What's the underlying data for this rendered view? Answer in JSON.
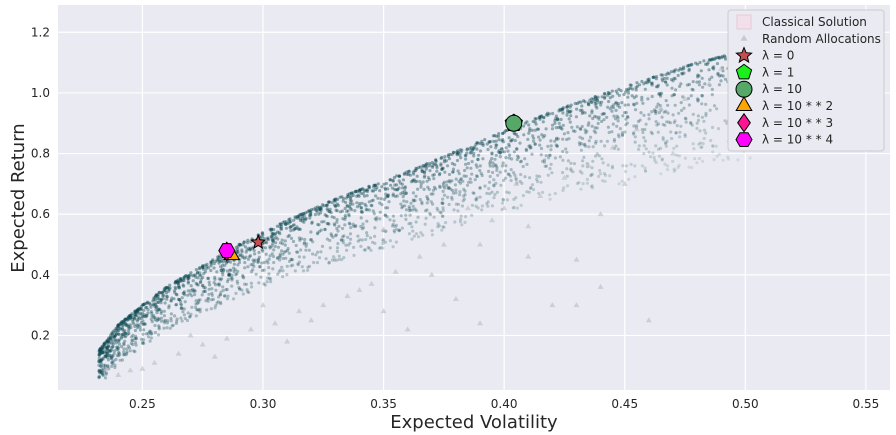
{
  "chart_data": {
    "type": "scatter",
    "xlabel": "Expected Volatility",
    "ylabel": "Expected Return",
    "xlim": [
      0.215,
      0.56
    ],
    "ylim": [
      0.02,
      1.29
    ],
    "xticks": [
      "0.25",
      "0.30",
      "0.35",
      "0.40",
      "0.45",
      "0.50",
      "0.55"
    ],
    "yticks": [
      "0.2",
      "0.4",
      "0.6",
      "0.8",
      "1.0",
      "1.2"
    ],
    "grid": true,
    "legend_position": "top-right",
    "random_cloud": {
      "name": "Random Allocations",
      "color": "#0e4a52",
      "frontier": [
        [
          0.232,
          0.15
        ],
        [
          0.24,
          0.235
        ],
        [
          0.25,
          0.3
        ],
        [
          0.26,
          0.36
        ],
        [
          0.275,
          0.43
        ],
        [
          0.29,
          0.5
        ],
        [
          0.31,
          0.58
        ],
        [
          0.33,
          0.65
        ],
        [
          0.36,
          0.74
        ],
        [
          0.39,
          0.84
        ],
        [
          0.42,
          0.94
        ],
        [
          0.45,
          1.02
        ],
        [
          0.48,
          1.1
        ],
        [
          0.505,
          1.15
        ]
      ],
      "sparse_points": [
        [
          0.27,
          0.2
        ],
        [
          0.3,
          0.3
        ],
        [
          0.32,
          0.25
        ],
        [
          0.34,
          0.35
        ],
        [
          0.37,
          0.4
        ],
        [
          0.39,
          0.5
        ],
        [
          0.41,
          0.56
        ],
        [
          0.42,
          0.3
        ],
        [
          0.44,
          0.6
        ],
        [
          0.46,
          0.25
        ],
        [
          0.43,
          0.45
        ],
        [
          0.45,
          0.7
        ],
        [
          0.47,
          0.8
        ],
        [
          0.35,
          0.55
        ],
        [
          0.31,
          0.18
        ],
        [
          0.28,
          0.13
        ],
        [
          0.24,
          0.07
        ],
        [
          0.25,
          0.09
        ],
        [
          0.36,
          0.22
        ],
        [
          0.4,
          0.62
        ],
        [
          0.38,
          0.32
        ],
        [
          0.33,
          0.45
        ],
        [
          0.49,
          1.08
        ],
        [
          0.5,
          1.12
        ],
        [
          0.495,
          1.06
        ],
        [
          0.485,
          1.03
        ],
        [
          0.505,
          1.16
        ],
        [
          0.475,
          0.98
        ],
        [
          0.465,
          0.95
        ],
        [
          0.455,
          0.88
        ],
        [
          0.445,
          0.82
        ],
        [
          0.435,
          0.76
        ],
        [
          0.425,
          0.72
        ],
        [
          0.415,
          0.66
        ],
        [
          0.405,
          0.7
        ],
        [
          0.395,
          0.58
        ],
        [
          0.385,
          0.62
        ],
        [
          0.375,
          0.5
        ],
        [
          0.365,
          0.46
        ],
        [
          0.355,
          0.41
        ],
        [
          0.345,
          0.37
        ],
        [
          0.335,
          0.33
        ],
        [
          0.325,
          0.3
        ],
        [
          0.315,
          0.28
        ],
        [
          0.305,
          0.24
        ],
        [
          0.295,
          0.22
        ],
        [
          0.285,
          0.19
        ],
        [
          0.275,
          0.17
        ],
        [
          0.265,
          0.14
        ],
        [
          0.255,
          0.11
        ],
        [
          0.245,
          0.085
        ],
        [
          0.235,
          0.09
        ],
        [
          0.35,
          0.28
        ],
        [
          0.39,
          0.24
        ],
        [
          0.41,
          0.46
        ],
        [
          0.43,
          0.3
        ],
        [
          0.44,
          0.36
        ]
      ]
    },
    "markers": [
      {
        "name": "Classical Solution",
        "label": "Classical Solution",
        "x": null,
        "y": null,
        "shape": "square",
        "color": "#f2dde6"
      },
      {
        "name": "Random Allocations",
        "label": "Random Allocations",
        "shape": "triangle-small",
        "color": "#b8bcc0"
      },
      {
        "name": "lambda=0",
        "label": "λ = 0",
        "x": 0.298,
        "y": 0.507,
        "shape": "star",
        "color": "#c44e52"
      },
      {
        "name": "lambda=1",
        "label": "λ = 1",
        "x": 0.404,
        "y": 0.9,
        "shape": "pentagon",
        "color": "#1cf01c"
      },
      {
        "name": "lambda=10",
        "label": "λ = 10",
        "x": 0.404,
        "y": 0.9,
        "shape": "circle",
        "color": "#55a868"
      },
      {
        "name": "lambda=10**2",
        "label": "λ = 10 * * 2",
        "x": 0.287,
        "y": 0.465,
        "shape": "triangle",
        "color": "#ffa500"
      },
      {
        "name": "lambda=10**3",
        "label": "λ = 10 * * 3",
        "x": 0.285,
        "y": 0.478,
        "shape": "diamond",
        "color": "#ff1493"
      },
      {
        "name": "lambda=10**4",
        "label": "λ = 10 * * 4",
        "x": 0.285,
        "y": 0.48,
        "shape": "hexagon",
        "color": "#ff00ff"
      }
    ]
  }
}
